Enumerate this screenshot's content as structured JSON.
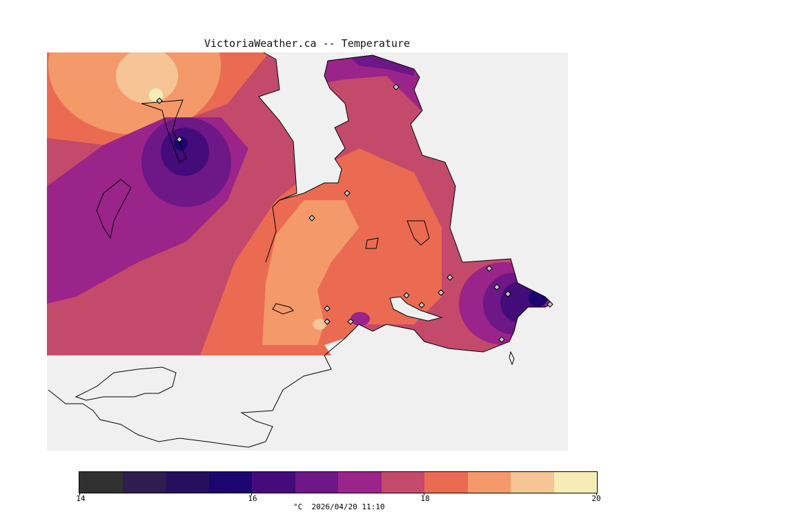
{
  "title": "VictoriaWeather.ca -- Temperature",
  "legend": {
    "colors": [
      "#303030",
      "#2e1e4f",
      "#25105e",
      "#1d0570",
      "#440b7a",
      "#6e1786",
      "#9a248a",
      "#c34a6b",
      "#ea6b52",
      "#f4996a",
      "#f6c495",
      "#f6ecb7"
    ],
    "ticks": [
      "14",
      "16",
      "18",
      "20"
    ],
    "units_timestamp": "°C  2026/04/20 11:10"
  },
  "palette": {
    "background": "#ffffff",
    "ocean": "#f0f0f0",
    "land_plain": "#ffffff",
    "coast": "#000000"
  }
}
